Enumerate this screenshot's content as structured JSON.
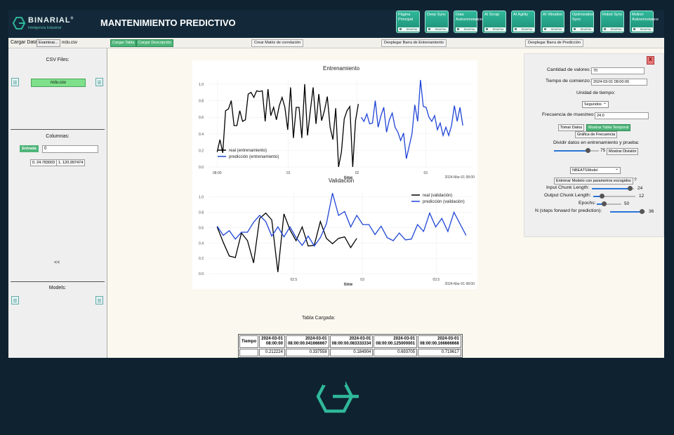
{
  "brand": {
    "name": "BINARIAL",
    "reg": "®",
    "tagline": "Inteligencia Industrial",
    "accent": "#2fb89a"
  },
  "app_title": "MANTENIMIENTO PREDICTIVO",
  "nav": [
    {
      "label": "Página Principal",
      "footer": "BINARIAL"
    },
    {
      "label": "Deep Sync",
      "footer": "BINARIAL"
    },
    {
      "label": "Data Autoeninstance",
      "footer": "BINARIAL"
    },
    {
      "label": "AI Scrap",
      "footer": "BINARIAL"
    },
    {
      "label": "AI Agility",
      "footer": "BINARIAL"
    },
    {
      "label": "AI Vibration",
      "footer": "BINARIAL"
    },
    {
      "label": "Optimization Sync",
      "footer": "BINARIAL"
    },
    {
      "label": "Robot Sync",
      "footer": "BINARIAL"
    },
    {
      "label": "Motion Autoeninstance",
      "footer": "BINARIAL"
    }
  ],
  "toolbar": {
    "load_label": "Cargar Data:",
    "browse": "Examinar...",
    "file": "nctu.csv",
    "load_table": "Cargar Tabla",
    "load_desc": "Cargar Descripción",
    "corr": "Crear Matriz de correlación",
    "train_bar": "Desplegar Barra de Entrenamiento",
    "pred_bar": "Desplegar Barra de Predicción"
  },
  "sidebar": {
    "csv_title": "CSV Files:",
    "csv_file": "nctu.csv",
    "columns_title": "Columnas:",
    "entrada_label": "Entrada",
    "entrada_value": "0",
    "chips": [
      "0. 24.783003",
      "1. 120.997474"
    ],
    "collapse": "<<",
    "models_title": "Models:"
  },
  "chart_data": [
    {
      "type": "line",
      "title": "Entrenamiento",
      "xlabel": "time",
      "x_ticks": [
        "08:00",
        "01",
        "02",
        "03"
      ],
      "x_corner": "2024-Mar-01 08:00",
      "y_ticks": [
        "0.0",
        "0.2",
        "0.4",
        "0.6",
        "0.8",
        "1.0"
      ],
      "ylim": [
        0,
        1.05
      ],
      "legend_position": "bottom-left",
      "series": [
        {
          "name": "real (entrenamiento)",
          "color": "#000000",
          "values": [
            0.18,
            0.33,
            0.17,
            0.68,
            0.7,
            0.8,
            0.5,
            0.5,
            0.68,
            0.55,
            0.57,
            0.88,
            0.9,
            0.84,
            0.92,
            0.91,
            0.92,
            0.55,
            0.94,
            0.62,
            0.72,
            0.57,
            0.74,
            0.84,
            0.72,
            0.45,
            0.96,
            0.35,
            0.72,
            0.72,
            0.35,
            1.0,
            0.38,
            0.68,
            0.96,
            0.52,
            0.88,
            0.56,
            0.68,
            0.85,
            0.48,
            0.33,
            0.71,
            0.0,
            0.18,
            0.58,
            0.68,
            0.73,
            0.0,
            0.56,
            0.76
          ]
        },
        {
          "name": "predicción (entrenamiento)",
          "color": "#1f45d6",
          "values": [
            0.6,
            0.55,
            0.64,
            0.52,
            0.53,
            0.8,
            0.48,
            0.62,
            0.72,
            0.42,
            0.57,
            0.65,
            0.48,
            0.42,
            0.32,
            0.41,
            0.1,
            0.25,
            0.4,
            0.75,
            0.55,
            1.05,
            0.73,
            0.72,
            0.6,
            0.55,
            0.62,
            0.45,
            0.53,
            0.38,
            0.48,
            0.38,
            0.5,
            0.74,
            0.55,
            0.72,
            0.5
          ]
        }
      ],
      "real_count": 51,
      "pred_offset": 51
    },
    {
      "type": "line",
      "title": "Validación",
      "xlabel": "time",
      "x_ticks": [
        "02.5",
        "03",
        "03.5"
      ],
      "x_corner": "2024-Mar-01 08:00",
      "y_ticks": [
        "0.0",
        "0.2",
        "0.4",
        "0.6",
        "0.8",
        "1.0"
      ],
      "ylim": [
        0,
        1.08
      ],
      "legend_position": "top-right",
      "series": [
        {
          "name": "real (validación)",
          "color": "#000000",
          "values": [
            0.61,
            0.41,
            0.23,
            0.21,
            0.53,
            0.43,
            0.14,
            0.72,
            0.79,
            0.7,
            0.02,
            0.78,
            0.57,
            0.43,
            0.61,
            0.36,
            0.37,
            0.68,
            0.46,
            0.39,
            0.46,
            0.48,
            0.34,
            0.46
          ]
        },
        {
          "name": "predicción (validación)",
          "color": "#1f45d6",
          "values": [
            0.62,
            0.5,
            0.56,
            0.45,
            0.54,
            0.54,
            0.67,
            0.76,
            0.68,
            0.49,
            0.61,
            0.48,
            0.61,
            0.47,
            0.37,
            0.49,
            0.36,
            0.47,
            0.65,
            1.05,
            0.76,
            0.81,
            0.61,
            0.76,
            0.64,
            0.64,
            0.51,
            0.62,
            0.47,
            0.43,
            0.53,
            0.44,
            0.45,
            0.64,
            0.55,
            0.79,
            0.61,
            0.72,
            0.55,
            0.8,
            0.65,
            0.5
          ]
        }
      ],
      "pred_offset": 0
    }
  ],
  "tabla": {
    "label": "Tabla Cargada:",
    "header_label": "Tiempo",
    "columns": [
      [
        "2024-03-01",
        "08:00:00"
      ],
      [
        "2024-03-01",
        "08:00:00.041666667"
      ],
      [
        "2024-03-01",
        "08:00:00.083333334"
      ],
      [
        "2024-03-01",
        "08:00:00.125000001"
      ],
      [
        "2024-03-01",
        "08:00:00.166666668"
      ]
    ],
    "values": [
      "0.212224",
      "0.337558",
      "0.184904",
      "0.693705",
      "0.719617"
    ]
  },
  "panel": {
    "close": "X",
    "cantidad_label": "Cantidad de valores:",
    "cantidad_value": "70",
    "tiempo_label": "Tiempo de comienzo:",
    "tiempo_value": "2024-03-01 08:00:00",
    "unidad_label": "Unidad de tiempo:",
    "unidad_value": "Segundos",
    "frecuencia_label": "Frecuencia de muestreo:",
    "frecuencia_value": "24.0",
    "btn_tomar": "Tomar Datos",
    "btn_mostrar": "Mostrar Tabla Temporal",
    "btn_grafica": "Gráfica de Frecuencia",
    "dividir_label": "Dividir datos en entrenamiento y prueba:",
    "dividir_value": "75",
    "dividir_fraction": 0.75,
    "btn_division": "Mostrar División",
    "model_value": "NBEATSModel",
    "btn_entrenar": "Entrenar Modelo con parametros escogidos",
    "help": "?",
    "input_chunk_label": "Input Chunk Length:",
    "input_chunk_value": "24",
    "input_chunk_fraction": 0.9,
    "output_chunk_label": "Output Chunk Length:",
    "output_chunk_value": "12",
    "output_chunk_fraction": 0.2,
    "epochs_label": "Epochs:",
    "epochs_value": "50",
    "epochs_fraction": 0.3,
    "n_label": "N (steps forward for prediction):",
    "n_value": "36",
    "n_fraction": 0.9
  }
}
